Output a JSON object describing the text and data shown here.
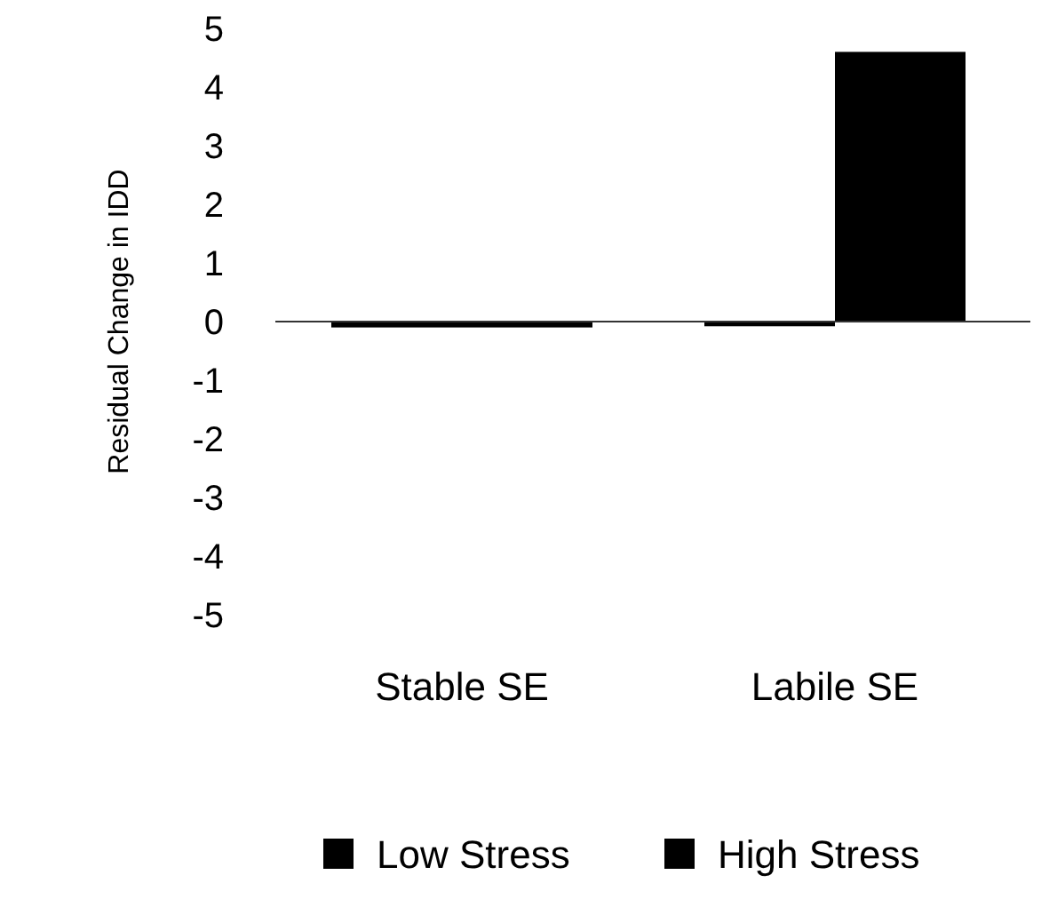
{
  "chart_data": {
    "type": "bar",
    "ylabel": "Residual Change in IDD",
    "categories": [
      "Stable SE",
      "Labile SE"
    ],
    "series": [
      {
        "name": "Low Stress",
        "color": "#000000",
        "values": [
          -0.1,
          -0.08
        ]
      },
      {
        "name": "High Stress",
        "color": "#000000",
        "values": [
          -0.1,
          4.6
        ]
      }
    ],
    "ylim": [
      -5,
      5
    ],
    "yticks": [
      -5,
      -4,
      -3,
      -2,
      -1,
      0,
      1,
      2,
      3,
      4,
      5
    ],
    "legend": "bottom"
  }
}
